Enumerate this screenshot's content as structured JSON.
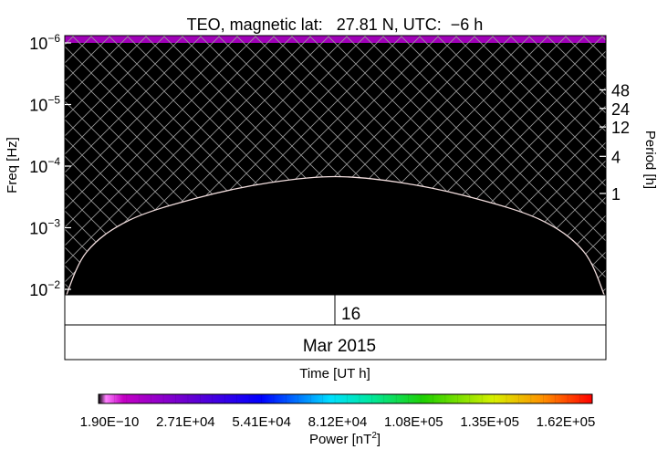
{
  "chart_data": {
    "type": "heatmap",
    "title": "TEO, magnetic lat:   27.81 N, UTC:  −6 h",
    "ylabel": "Freq [Hz]",
    "ylabel_right": "Period [h]",
    "y_scale": "log",
    "y_ticks": [
      {
        "value": 1e-06,
        "base": "10",
        "exp": "−6"
      },
      {
        "value": 1e-05,
        "base": "10",
        "exp": "−5"
      },
      {
        "value": 0.0001,
        "base": "10",
        "exp": "−4"
      },
      {
        "value": 0.001,
        "base": "10",
        "exp": "−3"
      },
      {
        "value": 0.01,
        "base": "10",
        "exp": "−2"
      }
    ],
    "ylim": [
      1e-06,
      0.02
    ],
    "period_ticks": [
      {
        "hours": 48,
        "label": "48"
      },
      {
        "hours": 24,
        "label": "24"
      },
      {
        "hours": 12,
        "label": "12"
      },
      {
        "hours": 4,
        "label": "4"
      },
      {
        "hours": 1,
        "label": "1"
      }
    ],
    "x_day_label": "16",
    "x_month_label": "Mar 2015",
    "xlabel": "Time [UT h]",
    "cone_of_influence": {
      "x_fraction": [
        0.0,
        0.04,
        0.12,
        0.25,
        0.38,
        0.5,
        0.62,
        0.75,
        0.88,
        0.96,
        1.0
      ],
      "freq_hz": [
        0.02,
        0.0025,
        0.00075,
        0.00032,
        0.000185,
        0.000148,
        0.000185,
        0.00032,
        0.00075,
        0.0025,
        0.02
      ]
    },
    "colorbar": {
      "label": "Power [nT",
      "label_sup": "2",
      "label_end": "]",
      "tick_labels": [
        "1.90E−10",
        "2.71E+04",
        "5.41E+04",
        "8.12E+04",
        "1.08E+05",
        "1.35E+05",
        "1.62E+05"
      ]
    },
    "colors": {
      "top_band": "#a000b8",
      "background": "#000000",
      "hatch": "#9a9a9a",
      "coi_line": "#f2dede"
    }
  }
}
